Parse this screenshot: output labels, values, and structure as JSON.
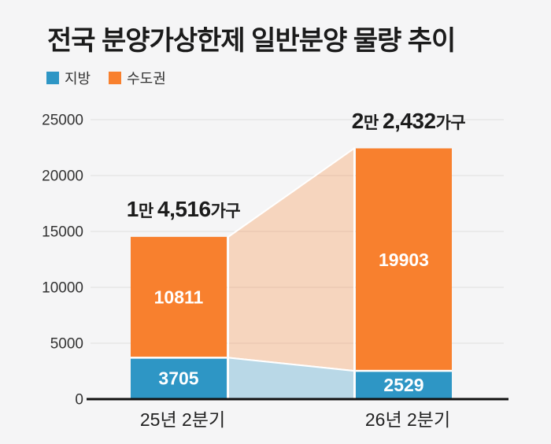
{
  "title": "전국 분양가상한제 일반분양 물량 추이",
  "legend": {
    "items": [
      {
        "key": "local",
        "label": "지방",
        "color": "#2E96C5"
      },
      {
        "key": "capital",
        "label": "수도권",
        "color": "#F8802E"
      }
    ]
  },
  "chart_data": {
    "type": "bar",
    "stacked": true,
    "title": "전국 분양가상한제 일반분양 물량 추이",
    "categories": [
      "25년 2분기",
      "26년 2분기"
    ],
    "series": [
      {
        "key": "local",
        "name": "지방",
        "color": "#2E96C5",
        "values": [
          3705,
          2529
        ]
      },
      {
        "key": "capital",
        "name": "수도권",
        "color": "#F8802E",
        "values": [
          10811,
          19903
        ]
      }
    ],
    "totals": [
      14516,
      22432
    ],
    "total_labels": [
      {
        "parts": [
          {
            "text": "1",
            "style": "num"
          },
          {
            "text": "만 ",
            "style": "unit"
          },
          {
            "text": "4,516",
            "style": "num"
          },
          {
            "text": "가구",
            "style": "unit"
          }
        ]
      },
      {
        "parts": [
          {
            "text": "2",
            "style": "num"
          },
          {
            "text": "만 ",
            "style": "unit"
          },
          {
            "text": "2,432",
            "style": "num"
          },
          {
            "text": "가구",
            "style": "unit"
          }
        ]
      }
    ],
    "y_ticks": [
      0,
      5000,
      10000,
      15000,
      20000,
      25000
    ],
    "ylim": [
      0,
      25000
    ],
    "grid": true,
    "legend_position": "top-left",
    "connector_bands": true,
    "band_opacity": {
      "capital": 0.28,
      "local": 0.3
    }
  },
  "colors": {
    "background": "#F5F5F6",
    "title_text": "#1B1B1B",
    "axis_line": "#111111",
    "gridline": "#E6E6E6",
    "y_tick_text": "#333333",
    "x_tick_text": "#222222",
    "bar_value_text": "#FFFFFF",
    "separator": "#FFFFFF"
  }
}
